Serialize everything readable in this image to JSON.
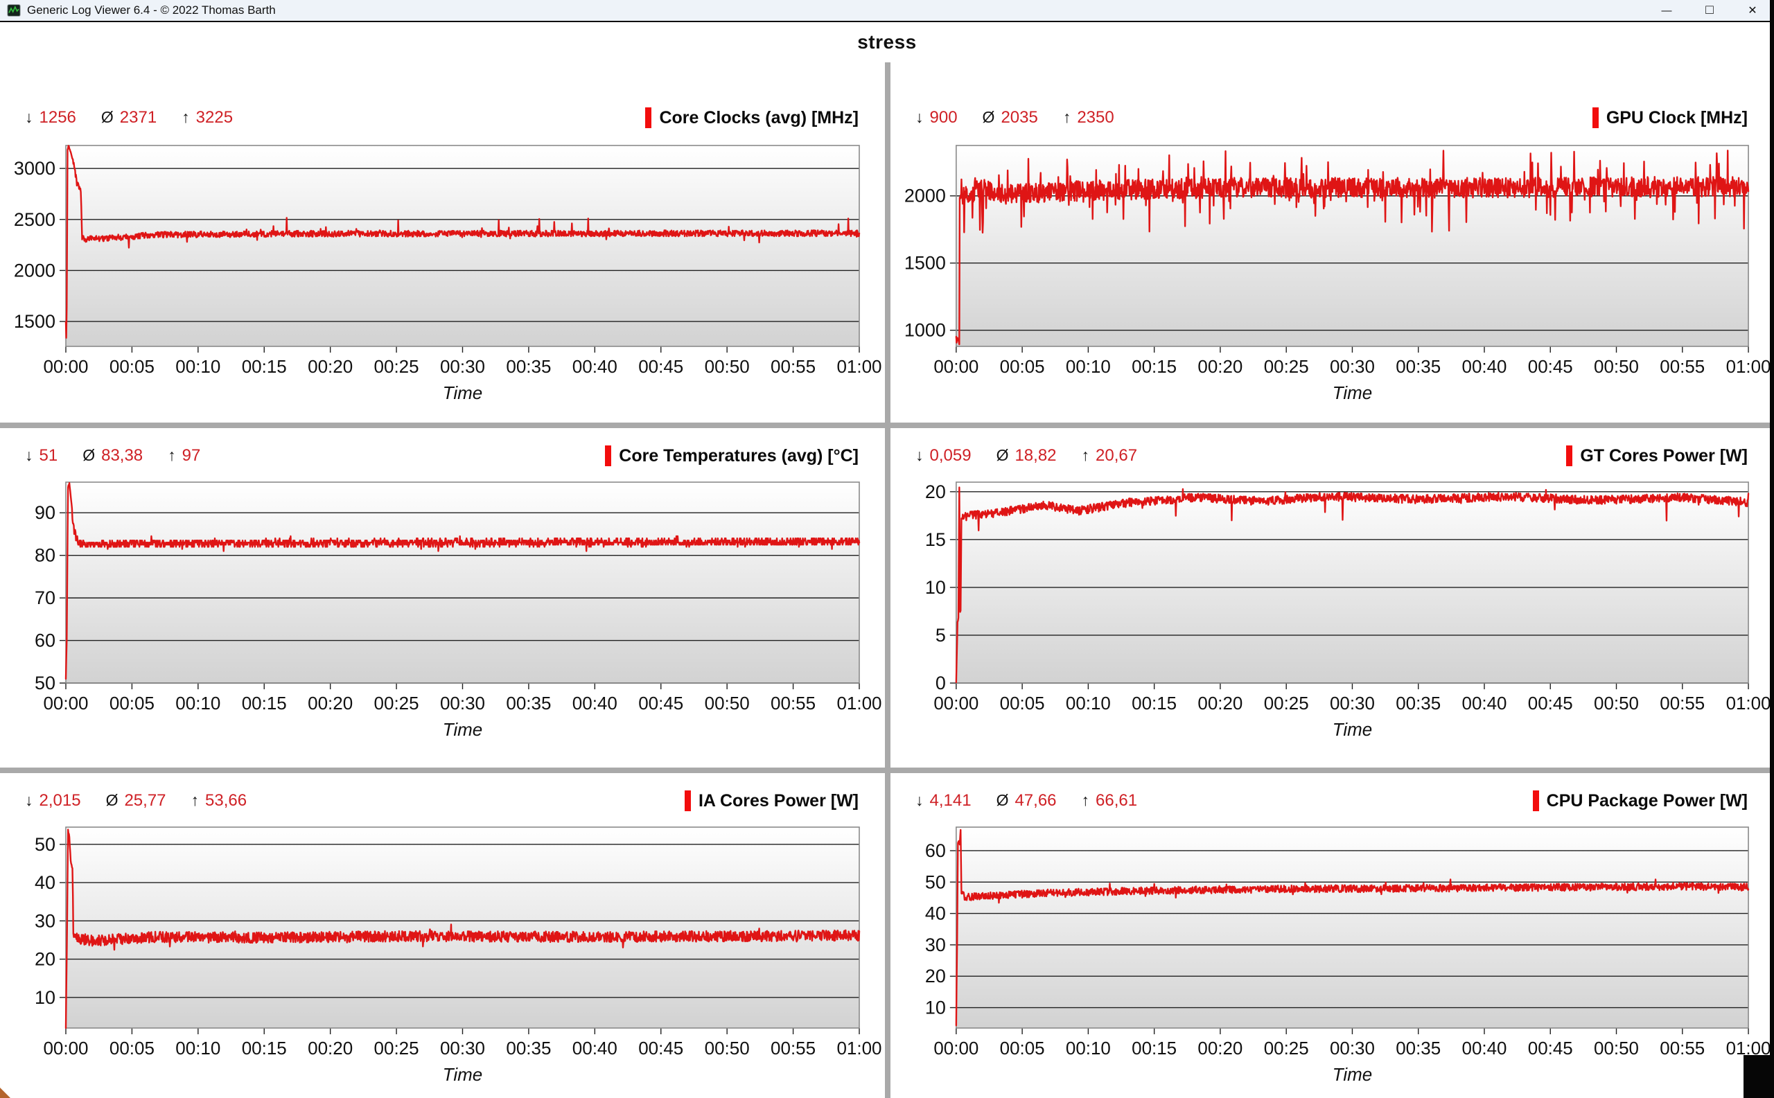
{
  "window": {
    "title": "Generic Log Viewer 6.4 - © 2022 Thomas Barth",
    "controls": {
      "minimize": "—",
      "maximize": "□",
      "close": "✕"
    }
  },
  "header": {
    "title": "stress"
  },
  "symbols": {
    "min": "↓",
    "avg": "Ø",
    "max": "↑"
  },
  "colors": {
    "series": "#df1515",
    "stat_value": "#cf2126",
    "legend_bar": "#f20d0d",
    "grid_line": "#1f1f1f",
    "plot_border": "#8a8a8a",
    "tick_text": "#111111",
    "divider": "#a9a9a9",
    "titlebar_bg": "#eef3f9",
    "gradient_top": "#ffffff",
    "gradient_bottom": "#d2d2d2"
  },
  "axis": {
    "x_label": "Time",
    "x_range_s": [
      0,
      3600
    ],
    "x_ticks": [
      "00:00",
      "00:05",
      "00:10",
      "00:15",
      "00:20",
      "00:25",
      "00:30",
      "00:35",
      "00:40",
      "00:45",
      "00:50",
      "00:55",
      "01:00"
    ]
  },
  "chart_data": [
    {
      "type": "line",
      "title": "Core Clocks (avg) [MHz]",
      "stats": {
        "min": "1256",
        "avg": "2371",
        "max": "3225"
      },
      "ylim": [
        1256,
        3225
      ],
      "yticks": [
        1500,
        2000,
        2500,
        3000
      ],
      "anchors": [
        [
          0,
          1500
        ],
        [
          3,
          1256
        ],
        [
          8,
          3180
        ],
        [
          12,
          3225
        ],
        [
          30,
          3100
        ],
        [
          50,
          2870
        ],
        [
          62,
          2800
        ],
        [
          68,
          2760
        ],
        [
          74,
          2310
        ],
        [
          150,
          2310
        ],
        [
          400,
          2350
        ],
        [
          1000,
          2360
        ],
        [
          3600,
          2365
        ]
      ],
      "noise": 30,
      "seed": 7,
      "spike": {
        "prob_up": 0.015,
        "amp_up": 150,
        "prob_down": 0.008,
        "amp_down": 80
      }
    },
    {
      "type": "line",
      "title": "GPU Clock [MHz]",
      "stats": {
        "min": "900",
        "avg": "2035",
        "max": "2350"
      },
      "ylim": [
        880,
        2375
      ],
      "yticks": [
        1000,
        1500,
        2000
      ],
      "anchors": [
        [
          0,
          950
        ],
        [
          8,
          935
        ],
        [
          14,
          900
        ],
        [
          16,
          1990
        ],
        [
          116,
          2050
        ],
        [
          120,
          1655
        ],
        [
          124,
          2050
        ],
        [
          200,
          2010
        ],
        [
          600,
          2040
        ],
        [
          1200,
          2060
        ],
        [
          2400,
          2060
        ],
        [
          3600,
          2070
        ]
      ],
      "noise": 75,
      "seed": 13,
      "spike": {
        "prob_up": 0.03,
        "amp_up": 230,
        "prob_down": 0.05,
        "amp_down": 280
      }
    },
    {
      "type": "line",
      "title": "Core Temperatures (avg) [°C]",
      "stats": {
        "min": "51",
        "avg": "83,38",
        "max": "97"
      },
      "ylim": [
        50,
        97.2
      ],
      "yticks": [
        50,
        60,
        70,
        80,
        90
      ],
      "anchors": [
        [
          0,
          51
        ],
        [
          4,
          60
        ],
        [
          10,
          96
        ],
        [
          16,
          97
        ],
        [
          24,
          93
        ],
        [
          34,
          87
        ],
        [
          44,
          84.5
        ],
        [
          60,
          83
        ],
        [
          120,
          82.5
        ],
        [
          300,
          82.8
        ],
        [
          3600,
          83.2
        ]
      ],
      "noise": 0.9,
      "seed": 21,
      "quantize": 0.5,
      "spike": {
        "prob_up": 0.02,
        "amp_up": 1.2,
        "prob_down": 0.02,
        "amp_down": 1.2
      }
    },
    {
      "type": "line",
      "title": "GT Cores Power [W]",
      "stats": {
        "min": "0,059",
        "avg": "18,82",
        "max": "20,67"
      },
      "ylim": [
        0,
        21
      ],
      "yticks": [
        0,
        5,
        10,
        15,
        20
      ],
      "anchors": [
        [
          0,
          0.06
        ],
        [
          6,
          6.3
        ],
        [
          10,
          6.8
        ],
        [
          14,
          20.5
        ],
        [
          18,
          7.4
        ],
        [
          20,
          7.5
        ],
        [
          24,
          17.2
        ],
        [
          60,
          17.5
        ],
        [
          200,
          17.8
        ],
        [
          400,
          18.6
        ],
        [
          550,
          18.0
        ],
        [
          800,
          18.9
        ],
        [
          1100,
          19.4
        ],
        [
          1400,
          19.0
        ],
        [
          1700,
          19.5
        ],
        [
          2100,
          19.2
        ],
        [
          2500,
          19.5
        ],
        [
          2900,
          19.1
        ],
        [
          3300,
          19.4
        ],
        [
          3600,
          18.9
        ]
      ],
      "noise": 0.45,
      "seed": 33,
      "spike": {
        "prob_up": 0.004,
        "amp_up": 1.0,
        "prob_down": 0.007,
        "amp_down": 2.4
      }
    },
    {
      "type": "line",
      "title": "IA Cores Power [W]",
      "stats": {
        "min": "2,015",
        "avg": "25,77",
        "max": "53,66"
      },
      "ylim": [
        2,
        54.5
      ],
      "yticks": [
        10,
        20,
        30,
        40,
        50
      ],
      "anchors": [
        [
          0,
          2.1
        ],
        [
          6,
          30
        ],
        [
          10,
          53.6
        ],
        [
          16,
          52
        ],
        [
          22,
          46
        ],
        [
          26,
          44.5
        ],
        [
          30,
          43.8
        ],
        [
          34,
          28
        ],
        [
          40,
          25.5
        ],
        [
          120,
          24.8
        ],
        [
          400,
          25.8
        ],
        [
          900,
          25.6
        ],
        [
          1500,
          26
        ],
        [
          2400,
          25.8
        ],
        [
          3600,
          26.2
        ]
      ],
      "noise": 1.4,
      "seed": 45,
      "spike": {
        "prob_up": 0.01,
        "amp_up": 2.2,
        "prob_down": 0.01,
        "amp_down": 2.2
      }
    },
    {
      "type": "line",
      "title": "CPU Package Power [W]",
      "stats": {
        "min": "4,141",
        "avg": "47,66",
        "max": "66,61"
      },
      "ylim": [
        3.5,
        67.5
      ],
      "yticks": [
        10,
        20,
        30,
        40,
        50,
        60
      ],
      "anchors": [
        [
          0,
          4.2
        ],
        [
          4,
          30
        ],
        [
          8,
          62.5
        ],
        [
          12,
          63
        ],
        [
          16,
          62
        ],
        [
          20,
          66.6
        ],
        [
          24,
          46.5
        ],
        [
          40,
          45.2
        ],
        [
          120,
          45.5
        ],
        [
          400,
          46.5
        ],
        [
          900,
          47.3
        ],
        [
          1500,
          47.8
        ],
        [
          2100,
          48
        ],
        [
          2700,
          48.3
        ],
        [
          3300,
          48.6
        ],
        [
          3600,
          48.4
        ]
      ],
      "noise": 1.15,
      "seed": 57,
      "spike": {
        "prob_up": 0.012,
        "amp_up": 2.5,
        "prob_down": 0.008,
        "amp_down": 2.0
      }
    }
  ]
}
